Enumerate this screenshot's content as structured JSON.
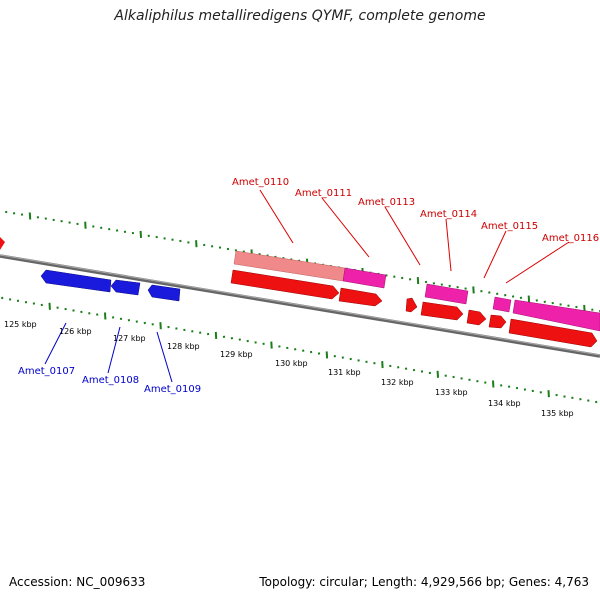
{
  "title": "Alkaliphilus metalliredigens QYMF, complete genome",
  "footer": {
    "accession": "Accession: NC_009633",
    "summary": "Topology: circular; Length: 4,929,566 bp; Genes: 4,763"
  },
  "colors": {
    "backbone": "#808080",
    "tick": "#1a7f1a",
    "forward_gene": "#ee1111",
    "forward_gene_light": "#f08a8a",
    "cds_pink": "#ee22aa",
    "reverse_gene": "#1a1add",
    "label_forward": "#cc0000",
    "label_reverse": "#0000cc"
  },
  "scale_labels": [
    "125 kbp",
    "126 kbp",
    "127 kbp",
    "128 kbp",
    "129 kbp",
    "130 kbp",
    "131 kbp",
    "132 kbp",
    "133 kbp",
    "134 kbp",
    "135 kbp"
  ],
  "genes_top": [
    {
      "label": "Amet_0110"
    },
    {
      "label": "Amet_0111"
    },
    {
      "label": "Amet_0113"
    },
    {
      "label": "Amet_0114"
    },
    {
      "label": "Amet_0115"
    },
    {
      "label": "Amet_0116"
    }
  ],
  "genes_bottom": [
    {
      "label": "Amet_0107"
    },
    {
      "label": "Amet_0108"
    },
    {
      "label": "Amet_0109"
    }
  ]
}
